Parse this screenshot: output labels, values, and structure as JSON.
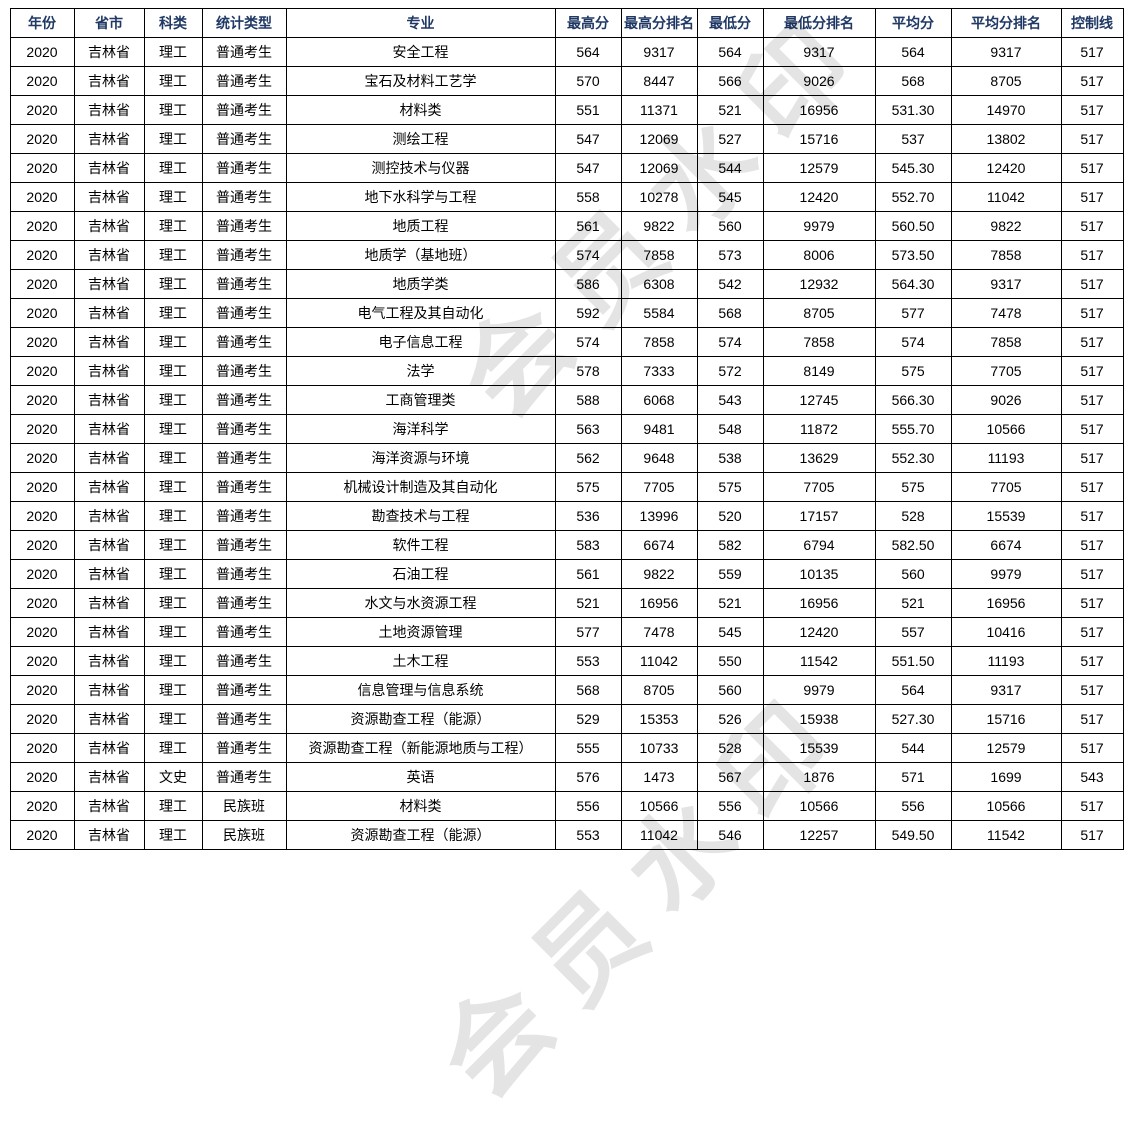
{
  "watermark": {
    "text": "会员水印"
  },
  "colors": {
    "header_text": "#1f3864",
    "body_text": "#000000",
    "border": "#000000",
    "background": "#ffffff"
  },
  "table": {
    "headers": [
      "年份",
      "省市",
      "科类",
      "统计类型",
      "专业",
      "最高分",
      "最高分排名",
      "最低分",
      "最低分排名",
      "平均分",
      "平均分排名",
      "控制线"
    ],
    "rows": [
      [
        "2020",
        "吉林省",
        "理工",
        "普通考生",
        "安全工程",
        "564",
        "9317",
        "564",
        "9317",
        "564",
        "9317",
        "517"
      ],
      [
        "2020",
        "吉林省",
        "理工",
        "普通考生",
        "宝石及材料工艺学",
        "570",
        "8447",
        "566",
        "9026",
        "568",
        "8705",
        "517"
      ],
      [
        "2020",
        "吉林省",
        "理工",
        "普通考生",
        "材料类",
        "551",
        "11371",
        "521",
        "16956",
        "531.30",
        "14970",
        "517"
      ],
      [
        "2020",
        "吉林省",
        "理工",
        "普通考生",
        "测绘工程",
        "547",
        "12069",
        "527",
        "15716",
        "537",
        "13802",
        "517"
      ],
      [
        "2020",
        "吉林省",
        "理工",
        "普通考生",
        "测控技术与仪器",
        "547",
        "12069",
        "544",
        "12579",
        "545.30",
        "12420",
        "517"
      ],
      [
        "2020",
        "吉林省",
        "理工",
        "普通考生",
        "地下水科学与工程",
        "558",
        "10278",
        "545",
        "12420",
        "552.70",
        "11042",
        "517"
      ],
      [
        "2020",
        "吉林省",
        "理工",
        "普通考生",
        "地质工程",
        "561",
        "9822",
        "560",
        "9979",
        "560.50",
        "9822",
        "517"
      ],
      [
        "2020",
        "吉林省",
        "理工",
        "普通考生",
        "地质学（基地班）",
        "574",
        "7858",
        "573",
        "8006",
        "573.50",
        "7858",
        "517"
      ],
      [
        "2020",
        "吉林省",
        "理工",
        "普通考生",
        "地质学类",
        "586",
        "6308",
        "542",
        "12932",
        "564.30",
        "9317",
        "517"
      ],
      [
        "2020",
        "吉林省",
        "理工",
        "普通考生",
        "电气工程及其自动化",
        "592",
        "5584",
        "568",
        "8705",
        "577",
        "7478",
        "517"
      ],
      [
        "2020",
        "吉林省",
        "理工",
        "普通考生",
        "电子信息工程",
        "574",
        "7858",
        "574",
        "7858",
        "574",
        "7858",
        "517"
      ],
      [
        "2020",
        "吉林省",
        "理工",
        "普通考生",
        "法学",
        "578",
        "7333",
        "572",
        "8149",
        "575",
        "7705",
        "517"
      ],
      [
        "2020",
        "吉林省",
        "理工",
        "普通考生",
        "工商管理类",
        "588",
        "6068",
        "543",
        "12745",
        "566.30",
        "9026",
        "517"
      ],
      [
        "2020",
        "吉林省",
        "理工",
        "普通考生",
        "海洋科学",
        "563",
        "9481",
        "548",
        "11872",
        "555.70",
        "10566",
        "517"
      ],
      [
        "2020",
        "吉林省",
        "理工",
        "普通考生",
        "海洋资源与环境",
        "562",
        "9648",
        "538",
        "13629",
        "552.30",
        "11193",
        "517"
      ],
      [
        "2020",
        "吉林省",
        "理工",
        "普通考生",
        "机械设计制造及其自动化",
        "575",
        "7705",
        "575",
        "7705",
        "575",
        "7705",
        "517"
      ],
      [
        "2020",
        "吉林省",
        "理工",
        "普通考生",
        "勘查技术与工程",
        "536",
        "13996",
        "520",
        "17157",
        "528",
        "15539",
        "517"
      ],
      [
        "2020",
        "吉林省",
        "理工",
        "普通考生",
        "软件工程",
        "583",
        "6674",
        "582",
        "6794",
        "582.50",
        "6674",
        "517"
      ],
      [
        "2020",
        "吉林省",
        "理工",
        "普通考生",
        "石油工程",
        "561",
        "9822",
        "559",
        "10135",
        "560",
        "9979",
        "517"
      ],
      [
        "2020",
        "吉林省",
        "理工",
        "普通考生",
        "水文与水资源工程",
        "521",
        "16956",
        "521",
        "16956",
        "521",
        "16956",
        "517"
      ],
      [
        "2020",
        "吉林省",
        "理工",
        "普通考生",
        "土地资源管理",
        "577",
        "7478",
        "545",
        "12420",
        "557",
        "10416",
        "517"
      ],
      [
        "2020",
        "吉林省",
        "理工",
        "普通考生",
        "土木工程",
        "553",
        "11042",
        "550",
        "11542",
        "551.50",
        "11193",
        "517"
      ],
      [
        "2020",
        "吉林省",
        "理工",
        "普通考生",
        "信息管理与信息系统",
        "568",
        "8705",
        "560",
        "9979",
        "564",
        "9317",
        "517"
      ],
      [
        "2020",
        "吉林省",
        "理工",
        "普通考生",
        "资源勘查工程（能源）",
        "529",
        "15353",
        "526",
        "15938",
        "527.30",
        "15716",
        "517"
      ],
      [
        "2020",
        "吉林省",
        "理工",
        "普通考生",
        "资源勘查工程（新能源地质与工程）",
        "555",
        "10733",
        "528",
        "15539",
        "544",
        "12579",
        "517"
      ],
      [
        "2020",
        "吉林省",
        "文史",
        "普通考生",
        "英语",
        "576",
        "1473",
        "567",
        "1876",
        "571",
        "1699",
        "543"
      ],
      [
        "2020",
        "吉林省",
        "理工",
        "民族班",
        "材料类",
        "556",
        "10566",
        "556",
        "10566",
        "556",
        "10566",
        "517"
      ],
      [
        "2020",
        "吉林省",
        "理工",
        "民族班",
        "资源勘查工程（能源）",
        "553",
        "11042",
        "546",
        "12257",
        "549.50",
        "11542",
        "517"
      ]
    ]
  }
}
